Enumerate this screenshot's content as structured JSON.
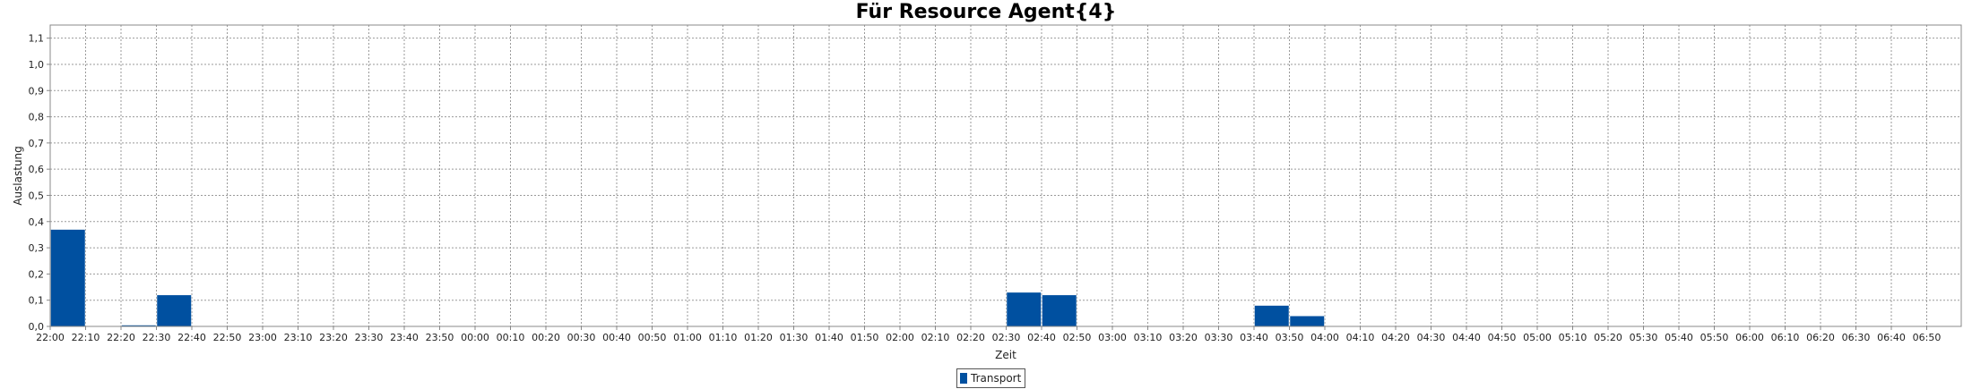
{
  "chart_data": {
    "type": "bar",
    "title": "Für Resource Agent{4}",
    "xlabel": "Zeit",
    "ylabel": "Auslastung",
    "ylim": [
      0,
      1.15
    ],
    "yticks": [
      "0,0",
      "0,1",
      "0,2",
      "0,3",
      "0,4",
      "0,5",
      "0,6",
      "0,7",
      "0,8",
      "0,9",
      "1,0",
      "1,1"
    ],
    "categories": [
      "22:00",
      "22:10",
      "22:20",
      "22:30",
      "22:40",
      "22:50",
      "23:00",
      "23:10",
      "23:20",
      "23:30",
      "23:40",
      "23:50",
      "00:00",
      "00:10",
      "00:20",
      "00:30",
      "00:40",
      "00:50",
      "01:00",
      "01:10",
      "01:20",
      "01:30",
      "01:40",
      "01:50",
      "02:00",
      "02:10",
      "02:20",
      "02:30",
      "02:40",
      "02:50",
      "03:00",
      "03:10",
      "03:20",
      "03:30",
      "03:40",
      "03:50",
      "04:00",
      "04:10",
      "04:20",
      "04:30",
      "04:40",
      "04:50",
      "05:00",
      "05:10",
      "05:20",
      "05:30",
      "05:40",
      "05:50",
      "06:00",
      "06:10",
      "06:20",
      "06:30",
      "06:40",
      "06:50"
    ],
    "grid": true,
    "legend_position": "bottom-center",
    "series": [
      {
        "name": "Transport",
        "color": "#0050a0",
        "values": [
          0.37,
          0,
          0.005,
          0.12,
          0,
          0,
          0,
          0,
          0,
          0,
          0,
          0,
          0,
          0,
          0,
          0,
          0,
          0,
          0,
          0,
          0,
          0,
          0,
          0,
          0,
          0,
          0,
          0.13,
          0.12,
          0,
          0,
          0,
          0,
          0,
          0.08,
          0.04,
          0,
          0,
          0,
          0,
          0,
          0,
          0,
          0,
          0,
          0,
          0,
          0,
          0,
          0,
          0,
          0,
          0,
          0
        ]
      }
    ]
  }
}
